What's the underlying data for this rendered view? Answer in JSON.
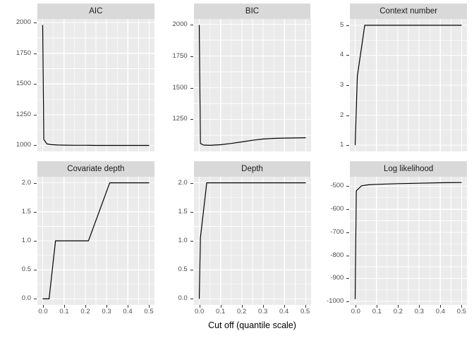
{
  "figure": {
    "xlabel": "Cut off (quantile scale)",
    "colors": {
      "background": "#ffffff",
      "panel_bg": "#ebebeb",
      "strip_bg": "#d9d9d9",
      "grid": "#ffffff",
      "line": "#000000",
      "axis_text": "#4d4d4d",
      "tick_mark": "#333333",
      "strip_text": "#1a1a1a"
    },
    "x_axis": {
      "lim": [
        -0.025,
        0.525
      ],
      "ticks": [
        0,
        0.1,
        0.2,
        0.3,
        0.4,
        0.5
      ],
      "tick_labels": [
        "0.0",
        "0.1",
        "0.2",
        "0.3",
        "0.4",
        "0.5"
      ],
      "minor": [
        0.05,
        0.15,
        0.25,
        0.35,
        0.45
      ]
    },
    "layout": {
      "rows": 2,
      "cols": 3,
      "grid": "on",
      "legend": "none"
    }
  },
  "chart_data": [
    {
      "type": "line",
      "title": "AIC",
      "x": [
        0,
        0.005,
        0.02,
        0.04,
        0.07,
        0.1,
        0.15,
        0.2,
        0.25,
        0.3,
        0.35,
        0.4,
        0.45,
        0.5
      ],
      "y": [
        1980,
        1048,
        1012,
        1006,
        1003,
        1002,
        1001,
        1001,
        1000,
        1000,
        1000,
        1000,
        1000,
        1000
      ],
      "ylim": [
        951,
        2029
      ],
      "yticks": [
        1000,
        1250,
        1500,
        1750,
        2000
      ],
      "ytick_labels": [
        "1000",
        "1250",
        "1500",
        "1750",
        "2000"
      ]
    },
    {
      "type": "line",
      "title": "BIC",
      "x": [
        0,
        0.005,
        0.02,
        0.05,
        0.1,
        0.15,
        0.2,
        0.25,
        0.3,
        0.35,
        0.4,
        0.45,
        0.5
      ],
      "y": [
        1995,
        1060,
        1047,
        1045,
        1050,
        1060,
        1072,
        1085,
        1095,
        1100,
        1102,
        1103,
        1105
      ],
      "ylim": [
        997,
        2042
      ],
      "yticks": [
        1250,
        1500,
        1750,
        2000
      ],
      "ytick_labels": [
        "1250",
        "1500",
        "1750",
        "2000"
      ]
    },
    {
      "type": "line",
      "title": "Context number",
      "x": [
        0,
        0.01,
        0.045,
        0.1,
        0.2,
        0.3,
        0.4,
        0.5
      ],
      "y": [
        1,
        3.3,
        5,
        5,
        5,
        5,
        5,
        5
      ],
      "ylim": [
        0.79,
        5.21
      ],
      "yticks": [
        1,
        2,
        3,
        4,
        5
      ],
      "ytick_labels": [
        "1",
        "2",
        "3",
        "4",
        "5"
      ]
    },
    {
      "type": "line",
      "title": "Covariate depth",
      "x": [
        0,
        0.03,
        0.06,
        0.1,
        0.15,
        0.215,
        0.315,
        0.4,
        0.5
      ],
      "y": [
        0,
        0,
        1,
        1,
        1,
        1,
        2,
        2,
        2
      ],
      "ylim": [
        -0.105,
        2.105
      ],
      "yticks": [
        0,
        0.5,
        1,
        1.5,
        2
      ],
      "ytick_labels": [
        "0.0",
        "0.5",
        "1.0",
        "1.5",
        "2.0"
      ]
    },
    {
      "type": "line",
      "title": "Depth",
      "x": [
        0,
        0.005,
        0.035,
        0.1,
        0.2,
        0.3,
        0.4,
        0.5
      ],
      "y": [
        0,
        1.05,
        2,
        2,
        2,
        2,
        2,
        2
      ],
      "ylim": [
        -0.105,
        2.105
      ],
      "yticks": [
        0,
        0.5,
        1,
        1.5,
        2
      ],
      "ytick_labels": [
        "0.0",
        "0.5",
        "1.0",
        "1.5",
        "2.0"
      ]
    },
    {
      "type": "line",
      "title": "Log likelihood",
      "x": [
        0,
        0.005,
        0.03,
        0.06,
        0.1,
        0.2,
        0.3,
        0.4,
        0.5
      ],
      "y": [
        -990,
        -520,
        -498,
        -494,
        -492,
        -489,
        -487,
        -485,
        -484
      ],
      "ylim": [
        -1015,
        -459
      ],
      "yticks": [
        -1000,
        -900,
        -800,
        -700,
        -600,
        -500
      ],
      "ytick_labels": [
        "-1000",
        "-900",
        "-800",
        "-700",
        "-600",
        "-500"
      ]
    }
  ]
}
